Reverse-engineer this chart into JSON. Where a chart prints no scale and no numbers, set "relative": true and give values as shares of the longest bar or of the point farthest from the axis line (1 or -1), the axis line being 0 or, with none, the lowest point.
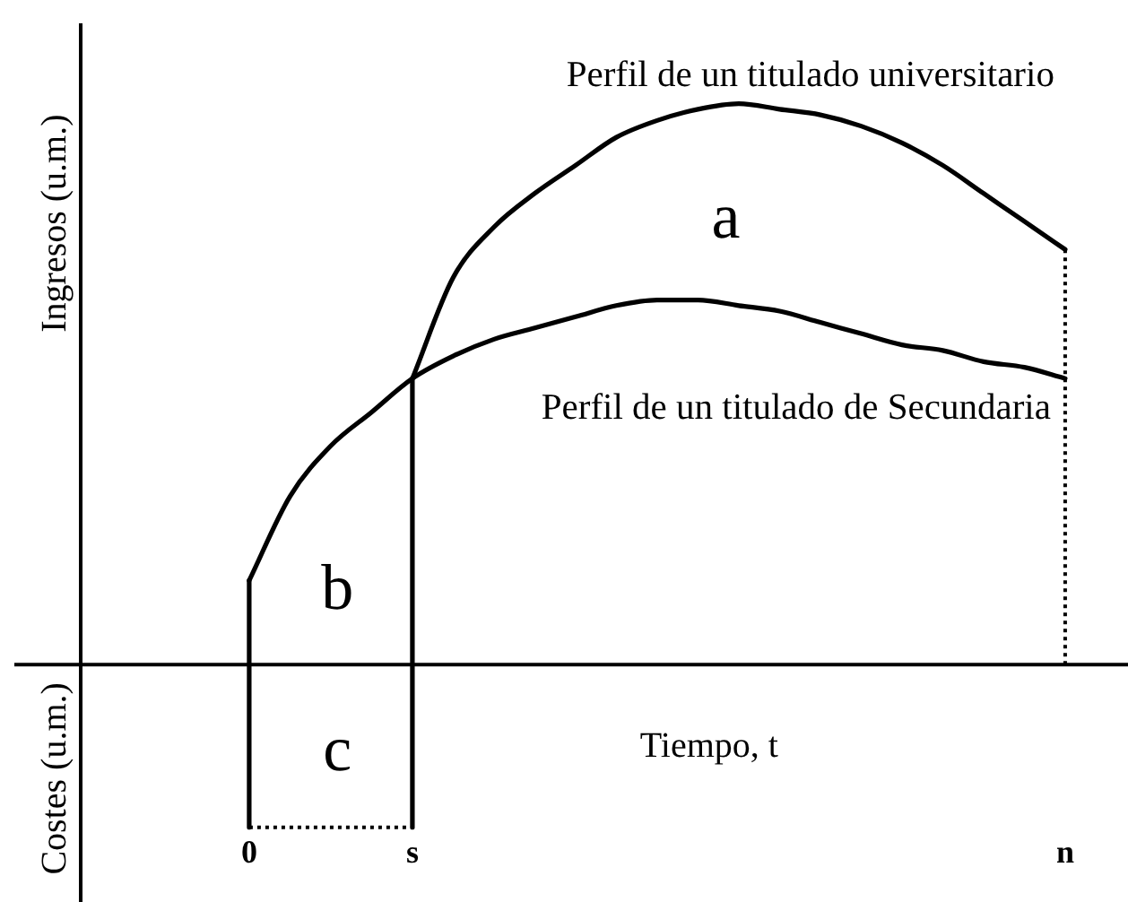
{
  "chart_data": {
    "type": "line",
    "relative": true,
    "xlabel": "Tiempo, t",
    "ylabel": "Ingresos (u.m.)",
    "annotations": [
      "Costes (u.m.)",
      "a",
      "b",
      "c"
    ],
    "categories": [
      "0",
      null,
      null,
      null,
      "s",
      null,
      null,
      null,
      null,
      null,
      null,
      null,
      null,
      null,
      null,
      null,
      null,
      null,
      null,
      null,
      "n"
    ],
    "series": [
      {
        "name": "Perfil de un titulado universitario",
        "color": "#000000",
        "values": [
          null,
          null,
          null,
          null,
          0.51,
          0.69,
          0.78,
          0.84,
          0.89,
          0.94,
          0.97,
          0.99,
          1,
          0.99,
          0.98,
          0.96,
          0.93,
          0.89,
          0.84,
          0.79,
          0.74
        ]
      },
      {
        "name": "Perfil de un titulado de Secundaria",
        "color": "#000000",
        "values": [
          0.15,
          0.3,
          0.39,
          0.45,
          0.51,
          0.55,
          0.58,
          0.6,
          0.62,
          0.64,
          0.65,
          0.65,
          0.64,
          0.63,
          0.61,
          0.59,
          0.57,
          0.56,
          0.54,
          0.53,
          0.51
        ]
      },
      {
        "color": "#000000",
        "x": [
          "0",
          "0"
        ],
        "values": [
          -0.29,
          0.15
        ]
      },
      {
        "color": "#000000",
        "x": [
          "s",
          "s"
        ],
        "values": [
          -0.29,
          0.51
        ]
      },
      {
        "color": "#000000",
        "line_style": "dotted",
        "x": [
          "0",
          "s"
        ],
        "values": [
          -0.29,
          -0.29
        ]
      },
      {
        "color": "#000000",
        "line_style": "dotted",
        "x": [
          "n",
          "n"
        ],
        "values": [
          0,
          0.74
        ]
      }
    ]
  }
}
